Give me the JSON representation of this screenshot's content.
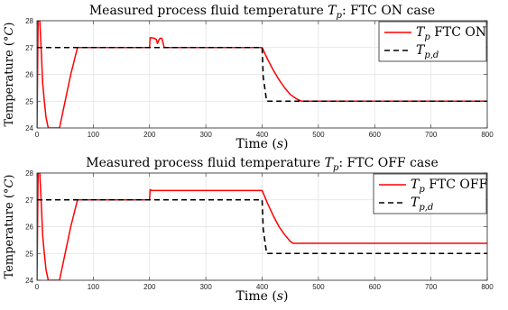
{
  "chart_data": [
    {
      "type": "line",
      "title": "Measured process fluid temperature T_p: FTC ON case",
      "xlabel": "Time (s)",
      "ylabel": "Temperature (°C)",
      "xlim": [
        0,
        800
      ],
      "ylim": [
        24,
        28
      ],
      "xticks": [
        "0",
        "100",
        "200",
        "300",
        "400",
        "500",
        "600",
        "700",
        "800"
      ],
      "yticks": [
        "24",
        "25",
        "26",
        "27",
        "28"
      ],
      "grid": true,
      "legend_position": "top-right",
      "series": [
        {
          "name": "T_p FTC ON",
          "color": "#ff0000",
          "style": "solid",
          "x": [
            0,
            2,
            5,
            8,
            10,
            13,
            16,
            20,
            40,
            50,
            60,
            72,
            200,
            201,
            204,
            208,
            212,
            214,
            217,
            219,
            222,
            226,
            230,
            400,
            410,
            420,
            430,
            440,
            450,
            460,
            470,
            800
          ],
          "y": [
            24,
            28,
            28,
            26.7,
            25.7,
            25.0,
            24.4,
            24.0,
            24.0,
            25.0,
            26.0,
            27.0,
            27.0,
            27.37,
            27.36,
            27.35,
            27.3,
            27.15,
            27.3,
            27.35,
            27.34,
            27.0,
            27.0,
            27.0,
            26.55,
            26.15,
            25.8,
            25.5,
            25.25,
            25.1,
            25.0,
            25.0
          ]
        },
        {
          "name": "T_p,d",
          "color": "#000000",
          "style": "dashed",
          "x": [
            0,
            400,
            402,
            408,
            800
          ],
          "y": [
            27,
            27,
            25.9,
            25,
            25
          ]
        }
      ]
    },
    {
      "type": "line",
      "title": "Measured process fluid temperature T_p: FTC OFF case",
      "xlabel": "Time (s)",
      "ylabel": "Temperature (°C)",
      "xlim": [
        0,
        800
      ],
      "ylim": [
        24,
        28
      ],
      "xticks": [
        "0",
        "100",
        "200",
        "300",
        "400",
        "500",
        "600",
        "700",
        "800"
      ],
      "yticks": [
        "24",
        "25",
        "26",
        "27",
        "28"
      ],
      "grid": true,
      "legend_position": "top-right",
      "series": [
        {
          "name": "T_p FTC OFF",
          "color": "#ff0000",
          "style": "solid",
          "x": [
            0,
            2,
            5,
            8,
            10,
            13,
            16,
            20,
            40,
            50,
            60,
            72,
            200,
            201,
            204,
            400,
            410,
            420,
            430,
            440,
            450,
            455,
            800
          ],
          "y": [
            24,
            28,
            28,
            26.7,
            25.7,
            25.0,
            24.4,
            24.0,
            24.0,
            25.0,
            26.0,
            27.0,
            27.0,
            27.38,
            27.35,
            27.35,
            26.85,
            26.4,
            26.0,
            25.7,
            25.45,
            25.38,
            25.38
          ]
        },
        {
          "name": "T_p,d",
          "color": "#000000",
          "style": "dashed",
          "x": [
            0,
            400,
            402,
            408,
            800
          ],
          "y": [
            27,
            27,
            25.9,
            25,
            25
          ]
        }
      ]
    }
  ]
}
